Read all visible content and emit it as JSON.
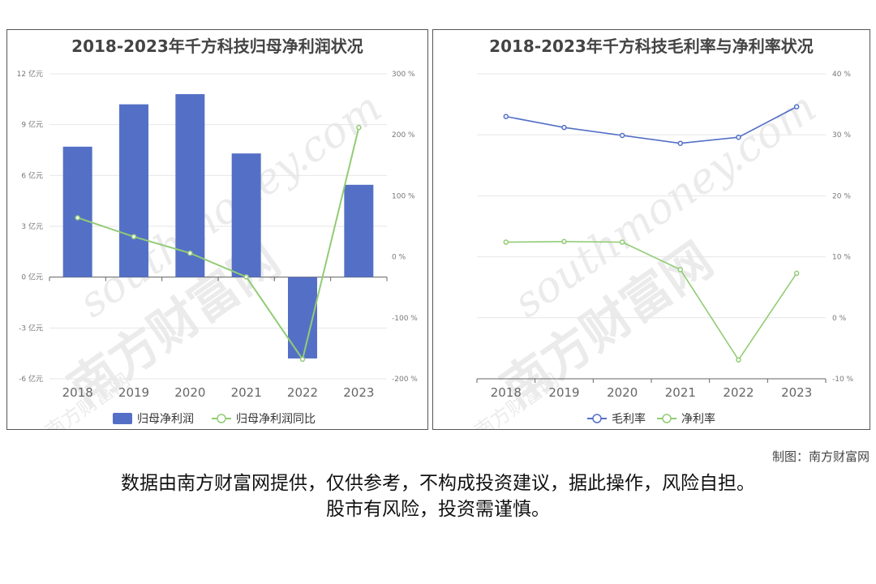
{
  "chart_data": [
    {
      "type": "bar+line",
      "title": "2018-2023年千方科技归母净利润状况",
      "categories": [
        "2018",
        "2019",
        "2020",
        "2021",
        "2022",
        "2023"
      ],
      "series": [
        {
          "name": "归母净利润",
          "type": "bar",
          "axis": "left",
          "values": [
            7.7,
            10.2,
            10.8,
            7.3,
            -4.8,
            5.45
          ]
        },
        {
          "name": "归母净利润同比",
          "type": "line",
          "axis": "right",
          "values": [
            64,
            33,
            6,
            -33,
            -168,
            212
          ]
        }
      ],
      "y_left": {
        "ticks": [
          12,
          9,
          6,
          3,
          0,
          -3,
          -6
        ],
        "tick_labels": [
          "12 亿元",
          "9 亿元",
          "6 亿元",
          "3 亿元",
          "0 亿元",
          "-3 亿元",
          "-6 亿元"
        ],
        "range": [
          -6,
          12
        ]
      },
      "y_right": {
        "ticks": [
          300,
          200,
          100,
          0,
          -100,
          -200
        ],
        "tick_labels": [
          "300 %",
          "200 %",
          "100 %",
          "0 %",
          "-100 %",
          "-200 %"
        ],
        "range": [
          -200,
          300
        ]
      },
      "grid": true,
      "legend": "bottom",
      "colors": {
        "bar": "#5470c6",
        "line": "#91cc75"
      }
    },
    {
      "type": "line",
      "title": "2018-2023年千方科技毛利率与净利率状况",
      "categories": [
        "2018",
        "2019",
        "2020",
        "2021",
        "2022",
        "2023"
      ],
      "series": [
        {
          "name": "毛利率",
          "values": [
            33.0,
            31.2,
            29.9,
            28.6,
            29.6,
            34.6
          ]
        },
        {
          "name": "净利率",
          "values": [
            12.4,
            12.5,
            12.4,
            7.9,
            -6.9,
            7.3
          ]
        }
      ],
      "y_right": {
        "ticks": [
          40,
          30,
          20,
          10,
          0,
          -10
        ],
        "tick_labels": [
          "40 %",
          "30 %",
          "20 %",
          "10 %",
          "0 %",
          "-10 %"
        ],
        "range": [
          -10,
          40
        ]
      },
      "grid": true,
      "legend": "bottom",
      "colors": {
        "line1": "#5470c6",
        "line2": "#91cc75"
      }
    }
  ],
  "watermark": {
    "brand": "南方财富网",
    "domain": "southmoney.com"
  },
  "footer": {
    "credit": "制图：南方财富网",
    "disclaimer_line1": "数据由南方财富网提供，仅供参考，不构成投资建议，据此操作，风险自担。",
    "disclaimer_line2": "股市有风险，投资需谨慎。"
  }
}
